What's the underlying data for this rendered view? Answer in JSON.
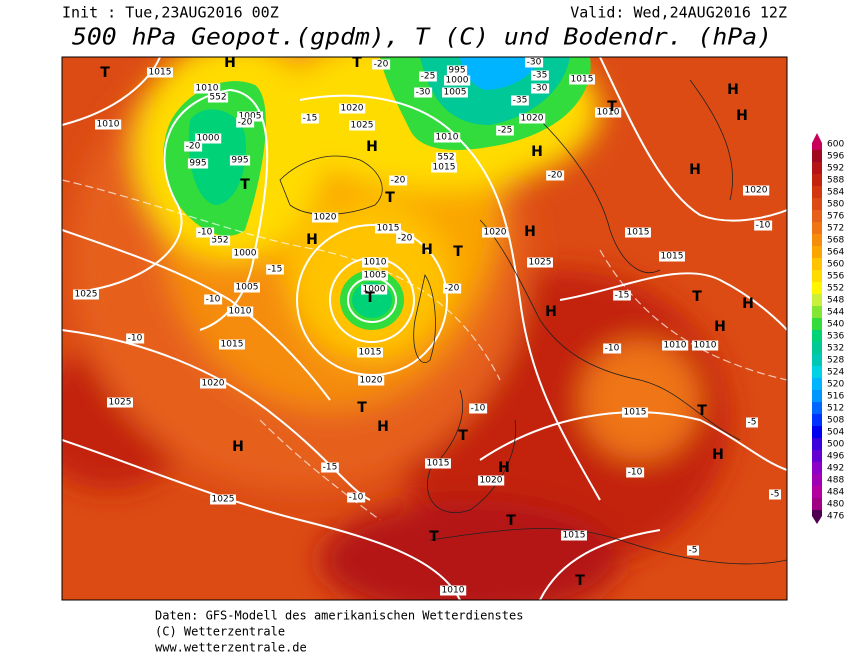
{
  "header": {
    "init": "Init : Tue,23AUG2016 00Z",
    "valid": "Valid: Wed,24AUG2016 12Z",
    "title": "500 hPa Geopot.(gpdm), T (C) und Bodendr. (hPa)"
  },
  "colorbar": {
    "ticks": [
      600,
      596,
      592,
      588,
      584,
      580,
      576,
      572,
      568,
      564,
      560,
      556,
      552,
      548,
      544,
      540,
      536,
      532,
      528,
      524,
      520,
      516,
      512,
      508,
      504,
      500,
      496,
      492,
      488,
      484,
      480,
      476
    ],
    "colors": [
      "#c8005a",
      "#a00a1e",
      "#b41414",
      "#c3230f",
      "#d2370f",
      "#dc4b14",
      "#e6601a",
      "#ef7414",
      "#f58c0a",
      "#faa500",
      "#ffc300",
      "#ffdc00",
      "#fff500",
      "#c8f03c",
      "#82e632",
      "#32dc3c",
      "#00d278",
      "#00c896",
      "#00c8b4",
      "#00d2e6",
      "#00b4ff",
      "#0096ff",
      "#0064ff",
      "#0032ff",
      "#0000f0",
      "#3c00dc",
      "#6400d2",
      "#8c00c8",
      "#a000b4",
      "#b400a0",
      "#a00082",
      "#500050"
    ]
  },
  "map": {
    "contour_labels": [
      1015,
      1010,
      552,
      1010,
      1005,
      1000,
      995,
      995,
      1000,
      1005,
      1010,
      1025,
      1015,
      1020,
      1025,
      1025,
      1020,
      1025,
      1020,
      1015,
      1010,
      1005,
      1000,
      1015,
      1020,
      1010,
      1015,
      1020,
      1025,
      1020,
      1015,
      1010,
      1020,
      1015,
      1015,
      1010,
      1010,
      1015,
      1015,
      1020,
      1015,
      1010,
      1005,
      1000,
      995,
      552,
      552
    ],
    "temperature_labels": [
      -20,
      -25,
      -30,
      -30,
      -35,
      -30,
      -35,
      -25,
      -20,
      -20,
      -15,
      -20,
      -20,
      -10,
      -15,
      -10,
      -20,
      -20,
      -15,
      -10,
      -10,
      -10,
      -15,
      -10,
      -10,
      -10,
      -5,
      -5,
      -5
    ],
    "pressure_centers": [
      "T",
      "H",
      "T",
      "H",
      "T",
      "H",
      "H",
      "T",
      "H",
      "T",
      "H",
      "H",
      "T",
      "T",
      "H",
      "H",
      "T",
      "H",
      "T",
      "T",
      "T",
      "H",
      "H",
      "H",
      "T",
      "H",
      "H",
      "T",
      "H",
      "T"
    ]
  },
  "footer": {
    "source": "Daten: GFS-Modell des amerikanischen Wetterdienstes",
    "copyright": "(C) Wetterzentrale",
    "url": "www.wetterzentrale.de"
  }
}
